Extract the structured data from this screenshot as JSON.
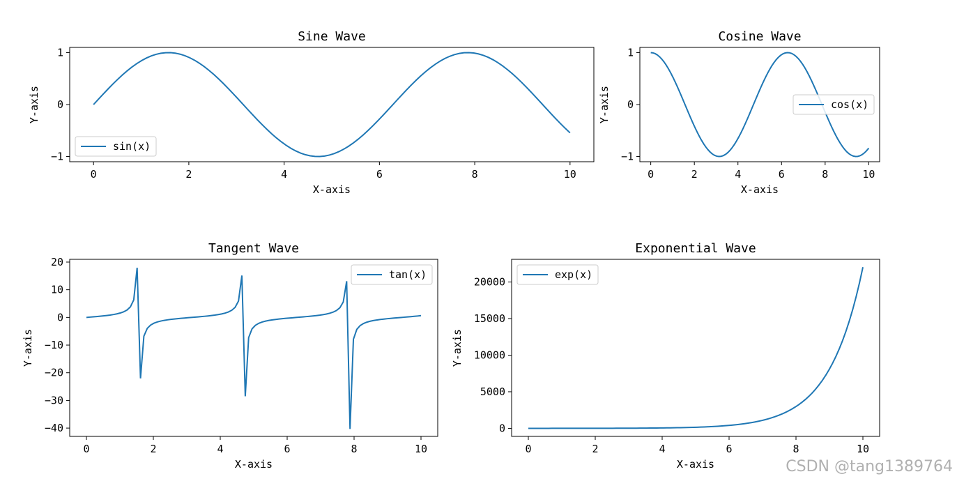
{
  "figure": {
    "line_color": "#1f77b4",
    "axis_color": "#000000"
  },
  "watermark": "CSDN @tang1389764",
  "chart_data": [
    {
      "type": "line",
      "id": "sine",
      "title": "Sine Wave",
      "xlabel": "X-axis",
      "ylabel": "Y-axis",
      "function": "sin",
      "x_range": [
        0,
        10
      ],
      "samples": 100,
      "xlim": [
        -0.5,
        10.5
      ],
      "ylim": [
        -1.1,
        1.1
      ],
      "xticks": [
        0,
        2,
        4,
        6,
        8,
        10
      ],
      "yticks": [
        -1,
        0,
        1
      ],
      "ytick_labels": [
        "−1",
        "0",
        "1"
      ],
      "legend": "sin(x)",
      "legend_loc": "lower-left"
    },
    {
      "type": "line",
      "id": "cosine",
      "title": "Cosine Wave",
      "xlabel": "X-axis",
      "ylabel": "Y-axis",
      "function": "cos",
      "x_range": [
        0,
        10
      ],
      "samples": 100,
      "xlim": [
        -0.5,
        10.5
      ],
      "ylim": [
        -1.1,
        1.1
      ],
      "xticks": [
        0,
        2,
        4,
        6,
        8,
        10
      ],
      "yticks": [
        -1,
        0,
        1
      ],
      "ytick_labels": [
        "−1",
        "0",
        "1"
      ],
      "legend": "cos(x)",
      "legend_loc": "center-right"
    },
    {
      "type": "line",
      "id": "tangent",
      "title": "Tangent Wave",
      "xlabel": "X-axis",
      "ylabel": "Y-axis",
      "function": "tan",
      "x_range": [
        0,
        10
      ],
      "samples": 100,
      "xlim": [
        -0.5,
        10.5
      ],
      "ylim": [
        -43,
        21
      ],
      "xticks": [
        0,
        2,
        4,
        6,
        8,
        10
      ],
      "yticks": [
        -40,
        -30,
        -20,
        -10,
        0,
        10,
        20
      ],
      "ytick_labels": [
        "−40",
        "−30",
        "−20",
        "−10",
        "0",
        "10",
        "20"
      ],
      "legend": "tan(x)",
      "legend_loc": "upper-right"
    },
    {
      "type": "line",
      "id": "exponential",
      "title": "Exponential Wave",
      "xlabel": "X-axis",
      "ylabel": "Y-axis",
      "function": "exp",
      "x_range": [
        0,
        10
      ],
      "samples": 100,
      "xlim": [
        -0.5,
        10.5
      ],
      "ylim": [
        -1100,
        23100
      ],
      "xticks": [
        0,
        2,
        4,
        6,
        8,
        10
      ],
      "yticks": [
        0,
        5000,
        10000,
        15000,
        20000
      ],
      "ytick_labels": [
        "0",
        "5000",
        "10000",
        "15000",
        "20000"
      ],
      "legend": "exp(x)",
      "legend_loc": "upper-left"
    }
  ]
}
